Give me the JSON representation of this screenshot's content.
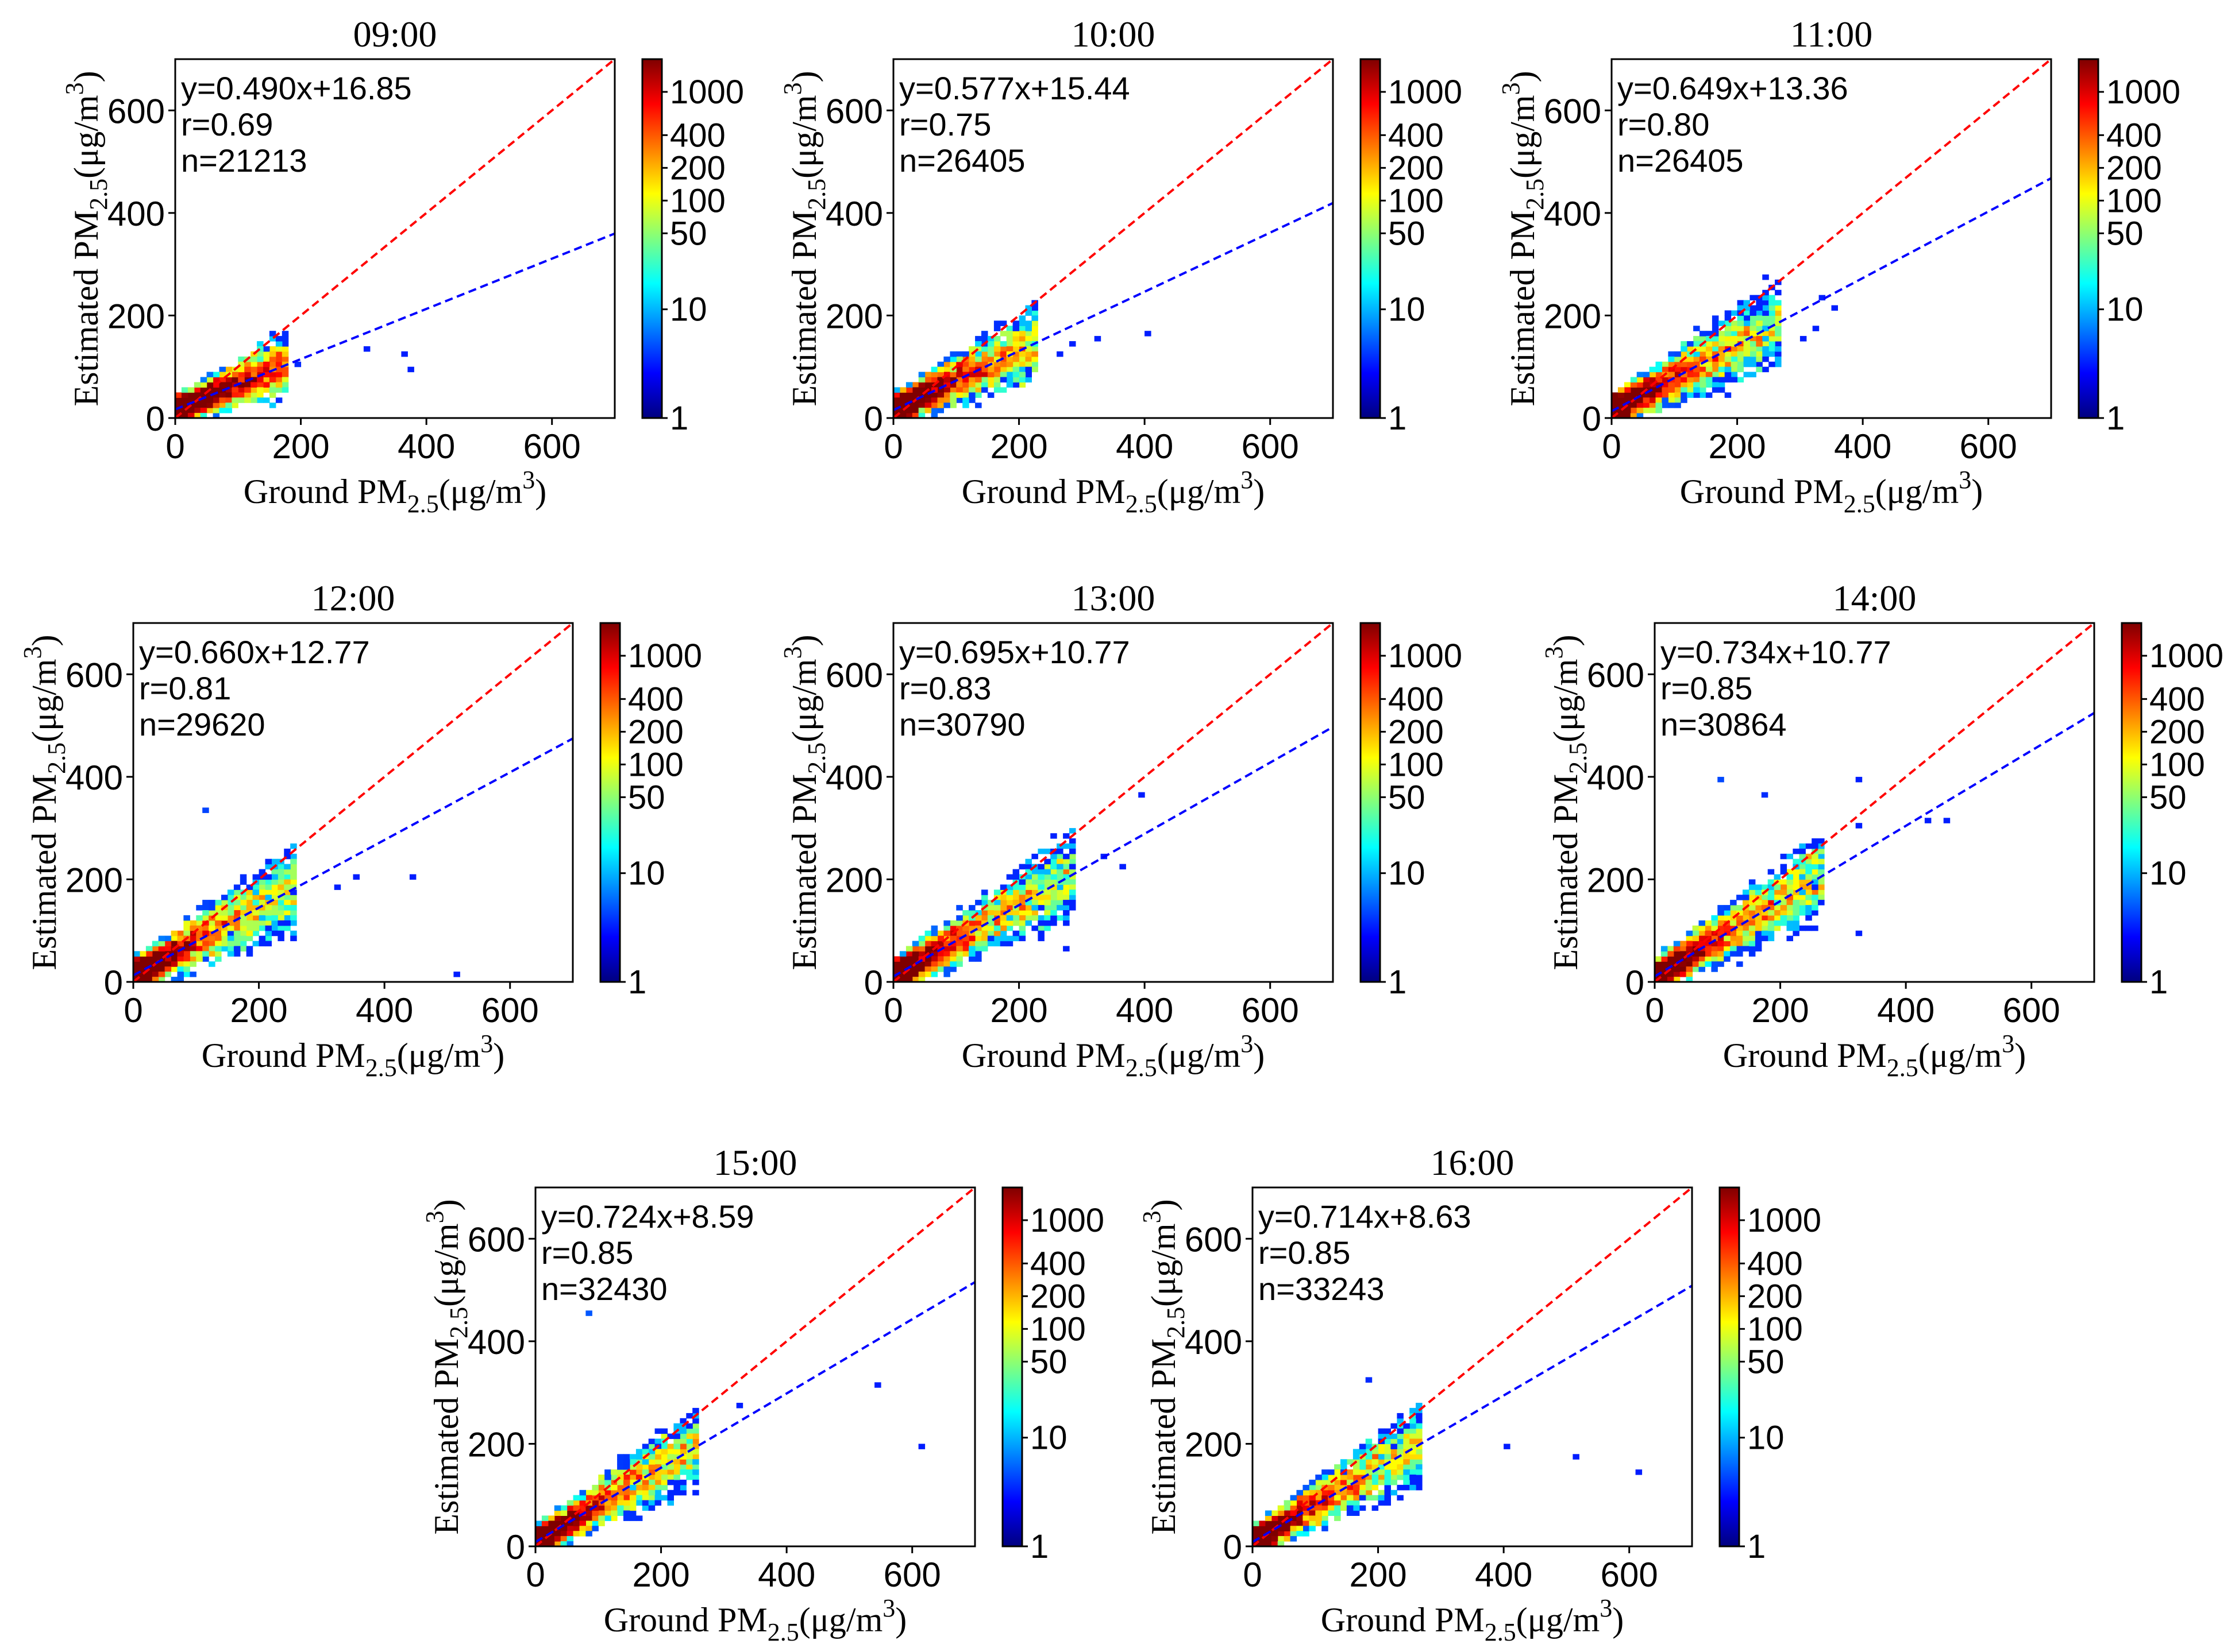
{
  "figure": {
    "axis_range": [
      0,
      700
    ],
    "colorbar_ticks": [
      "1",
      "10",
      "50",
      "100",
      "200",
      "400",
      "1000"
    ],
    "colormap": [
      "#00007f",
      "#0000ff",
      "#007fff",
      "#00ffff",
      "#7fff7f",
      "#ffff00",
      "#ff7f00",
      "#ff0000",
      "#7f0000"
    ],
    "ref_line_color": "#ff0000",
    "fit_line_color": "#0000ff",
    "x_ticks": [
      "0",
      "200",
      "400",
      "600"
    ],
    "y_ticks": [
      "0",
      "200",
      "400",
      "600"
    ]
  },
  "chart_data": [
    {
      "type": "heatmap",
      "title": "09:00",
      "xlabel": {
        "main": "Ground PM",
        "sub": "2.5",
        "unit": "(μg/m",
        "sup": "3",
        "close": ")"
      },
      "ylabel": {
        "main": "Estimated PM",
        "sub": "2.5",
        "unit": "(μg/m",
        "sup": "3",
        "close": ")"
      },
      "xlim": [
        0,
        700
      ],
      "ylim": [
        0,
        700
      ],
      "fit": {
        "slope": 0.49,
        "intercept": 16.85
      },
      "stats": [
        "y=0.490x+16.85",
        "r=0.69",
        "n=21213"
      ],
      "cloud": {
        "xmax": 180,
        "spread": 35
      },
      "outliers": [
        [
          300,
          130
        ],
        [
          360,
          120
        ],
        [
          370,
          95
        ],
        [
          195,
          100
        ]
      ]
    },
    {
      "type": "heatmap",
      "title": "10:00",
      "xlabel": {
        "main": "Ground PM",
        "sub": "2.5",
        "unit": "(μg/m",
        "sup": "3",
        "close": ")"
      },
      "ylabel": {
        "main": "Estimated PM",
        "sub": "2.5",
        "unit": "(μg/m",
        "sup": "3",
        "close": ")"
      },
      "xlim": [
        0,
        700
      ],
      "ylim": [
        0,
        700
      ],
      "fit": {
        "slope": 0.577,
        "intercept": 15.44
      },
      "stats": [
        "y=0.577x+15.44",
        "r=0.75",
        "n=26405"
      ],
      "cloud": {
        "xmax": 230,
        "spread": 45
      },
      "outliers": [
        [
          280,
          140
        ],
        [
          320,
          150
        ],
        [
          400,
          165
        ],
        [
          260,
          120
        ]
      ]
    },
    {
      "type": "heatmap",
      "title": "11:00",
      "xlabel": {
        "main": "Ground PM",
        "sub": "2.5",
        "unit": "(μg/m",
        "sup": "3",
        "close": ")"
      },
      "ylabel": {
        "main": "Estimated PM",
        "sub": "2.5",
        "unit": "(μg/m",
        "sup": "3",
        "close": ")"
      },
      "xlim": [
        0,
        700
      ],
      "ylim": [
        0,
        700
      ],
      "fit": {
        "slope": 0.649,
        "intercept": 13.36
      },
      "stats": [
        "y=0.649x+13.36",
        "r=0.80",
        "n=26405"
      ],
      "cloud": {
        "xmax": 270,
        "spread": 50
      },
      "outliers": [
        [
          330,
          230
        ],
        [
          350,
          210
        ],
        [
          320,
          170
        ],
        [
          300,
          150
        ]
      ]
    },
    {
      "type": "heatmap",
      "title": "12:00",
      "xlabel": {
        "main": "Ground PM",
        "sub": "2.5",
        "unit": "(μg/m",
        "sup": "3",
        "close": ")"
      },
      "ylabel": {
        "main": "Estimated PM",
        "sub": "2.5",
        "unit": "(μg/m",
        "sup": "3",
        "close": ")"
      },
      "xlim": [
        0,
        700
      ],
      "ylim": [
        0,
        700
      ],
      "fit": {
        "slope": 0.66,
        "intercept": 12.77
      },
      "stats": [
        "y=0.660x+12.77",
        "r=0.81",
        "n=29620"
      ],
      "cloud": {
        "xmax": 260,
        "spread": 50
      },
      "outliers": [
        [
          110,
          330
        ],
        [
          320,
          180
        ],
        [
          440,
          205
        ],
        [
          510,
          15
        ],
        [
          350,
          205
        ]
      ]
    },
    {
      "type": "heatmap",
      "title": "13:00",
      "xlabel": {
        "main": "Ground PM",
        "sub": "2.5",
        "unit": "(μg/m",
        "sup": "3",
        "close": ")"
      },
      "ylabel": {
        "main": "Estimated PM",
        "sub": "2.5",
        "unit": "(μg/m",
        "sup": "3",
        "close": ")"
      },
      "xlim": [
        0,
        700
      ],
      "ylim": [
        0,
        700
      ],
      "fit": {
        "slope": 0.695,
        "intercept": 10.77
      },
      "stats": [
        "y=0.695x+10.77",
        "r=0.83",
        "n=30790"
      ],
      "cloud": {
        "xmax": 290,
        "spread": 50
      },
      "outliers": [
        [
          390,
          360
        ],
        [
          330,
          240
        ],
        [
          360,
          220
        ],
        [
          270,
          60
        ]
      ]
    },
    {
      "type": "heatmap",
      "title": "14:00",
      "xlabel": {
        "main": "Ground PM",
        "sub": "2.5",
        "unit": "(μg/m",
        "sup": "3",
        "close": ")"
      },
      "ylabel": {
        "main": "Estimated PM",
        "sub": "2.5",
        "unit": "(μg/m",
        "sup": "3",
        "close": ")"
      },
      "xlim": [
        0,
        700
      ],
      "ylim": [
        0,
        700
      ],
      "fit": {
        "slope": 0.734,
        "intercept": 10.77
      },
      "stats": [
        "y=0.734x+10.77",
        "r=0.85",
        "n=30864"
      ],
      "cloud": {
        "xmax": 270,
        "spread": 48
      },
      "outliers": [
        [
          100,
          390
        ],
        [
          175,
          365
        ],
        [
          320,
          390
        ],
        [
          430,
          310
        ],
        [
          460,
          315
        ],
        [
          320,
          300
        ],
        [
          320,
          90
        ]
      ]
    },
    {
      "type": "heatmap",
      "title": "15:00",
      "xlabel": {
        "main": "Ground PM",
        "sub": "2.5",
        "unit": "(μg/m",
        "sup": "3",
        "close": ")"
      },
      "ylabel": {
        "main": "Estimated PM",
        "sub": "2.5",
        "unit": "(μg/m",
        "sup": "3",
        "close": ")"
      },
      "xlim": [
        0,
        700
      ],
      "ylim": [
        0,
        700
      ],
      "fit": {
        "slope": 0.724,
        "intercept": 8.59
      },
      "stats": [
        "y=0.724x+8.59",
        "r=0.85",
        "n=32430"
      ],
      "cloud": {
        "xmax": 260,
        "spread": 45
      },
      "outliers": [
        [
          80,
          450
        ],
        [
          540,
          315
        ],
        [
          610,
          195
        ],
        [
          320,
          270
        ]
      ]
    },
    {
      "type": "heatmap",
      "title": "16:00",
      "xlabel": {
        "main": "Ground PM",
        "sub": "2.5",
        "unit": "(μg/m",
        "sup": "3",
        "close": ")"
      },
      "ylabel": {
        "main": "Estimated PM",
        "sub": "2.5",
        "unit": "(μg/m",
        "sup": "3",
        "close": ")"
      },
      "xlim": [
        0,
        700
      ],
      "ylim": [
        0,
        700
      ],
      "fit": {
        "slope": 0.714,
        "intercept": 8.63
      },
      "stats": [
        "y=0.714x+8.63",
        "r=0.85",
        "n=33243"
      ],
      "cloud": {
        "xmax": 270,
        "spread": 45
      },
      "outliers": [
        [
          180,
          320
        ],
        [
          400,
          190
        ],
        [
          510,
          170
        ],
        [
          610,
          145
        ]
      ]
    }
  ]
}
